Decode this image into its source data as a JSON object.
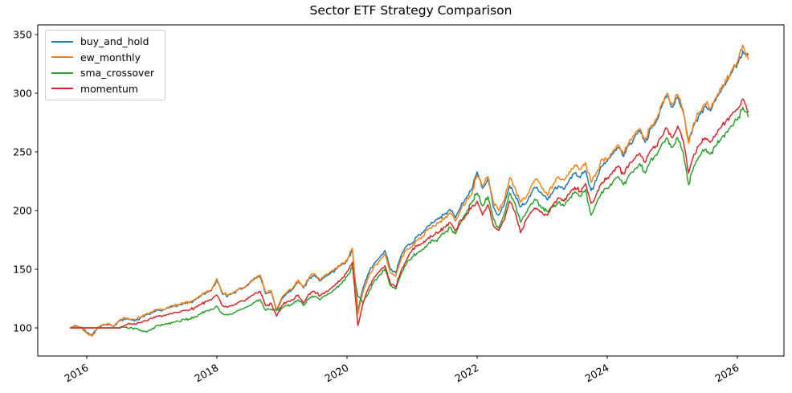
{
  "chart_data": {
    "type": "line",
    "title": "Sector ETF Strategy Comparison",
    "xlabel": "",
    "ylabel": "",
    "x_ticks": [
      2016,
      2018,
      2020,
      2022,
      2024,
      2026
    ],
    "y_ticks": [
      100,
      150,
      200,
      250,
      300,
      350
    ],
    "xlim": [
      2015.25,
      2026.7
    ],
    "ylim": [
      76,
      358
    ],
    "grid": false,
    "legend_position": "upper left",
    "x_tick_rotation_deg": 30,
    "x_start": 2015.75,
    "x_frequency": "monthly",
    "n_points": 126,
    "x_note": "x values are decimal years: 2015.75 + k/12 for k = 0..125 (Oct 2015 through Mar 2026)",
    "series": [
      {
        "name": "buy_and_hold",
        "color": "#1f77b4",
        "values": [
          100,
          102,
          100.5,
          96,
          94,
          100,
          102.5,
          103,
          101,
          106,
          108,
          107,
          106.5,
          109,
          111.5,
          113,
          115.5,
          115,
          117,
          118.5,
          119.5,
          121,
          121.5,
          124,
          127,
          130,
          132,
          141,
          129,
          127,
          129.5,
          133,
          134,
          138,
          142,
          144,
          129,
          131,
          114.5,
          125,
          130,
          133,
          140,
          134,
          142,
          145,
          140,
          144,
          147,
          150,
          154,
          157,
          167,
          115,
          135,
          147,
          155,
          160,
          166,
          150,
          147,
          162,
          170,
          172,
          178,
          181,
          187,
          190,
          193,
          197,
          201,
          194,
          204,
          211,
          218,
          233,
          219,
          228,
          203,
          196,
          205,
          221,
          213,
          203,
          206,
          215,
          220,
          214,
          209,
          216,
          221,
          218,
          226,
          232,
          228,
          234,
          217,
          226,
          238,
          242,
          248,
          254,
          246,
          256,
          262,
          268,
          258,
          270,
          276,
          288,
          298,
          288,
          297,
          284,
          259,
          273,
          282,
          289,
          285,
          294,
          302,
          310,
          318,
          325,
          336,
          333
        ]
      },
      {
        "name": "ew_monthly",
        "color": "#ff7f0e",
        "values": [
          100,
          101.5,
          100,
          95.5,
          93,
          100,
          103,
          103.5,
          101.5,
          106.5,
          108.5,
          107.5,
          107,
          109.5,
          112,
          113.5,
          116,
          115.5,
          117.5,
          119,
          120,
          121.5,
          122,
          124.5,
          127.5,
          130.5,
          132.5,
          142,
          130,
          128,
          130,
          133.5,
          134.5,
          138.5,
          142.5,
          145,
          130,
          132,
          115,
          126,
          131,
          134,
          141,
          135,
          143,
          146,
          141,
          145,
          148,
          151,
          155,
          158,
          168,
          112,
          132,
          144,
          152,
          157,
          163,
          147,
          144,
          159,
          167,
          169,
          175,
          178,
          184,
          187,
          190,
          193,
          198,
          191,
          201,
          208,
          214,
          230,
          221,
          229,
          207,
          200,
          209,
          228,
          219,
          207,
          211,
          221,
          227,
          219,
          213,
          222,
          229,
          226,
          233,
          239,
          235,
          241,
          224,
          232,
          244,
          244,
          250,
          256,
          248,
          258,
          264,
          270,
          260,
          272,
          278,
          290,
          300,
          290,
          299,
          286,
          257,
          275,
          284,
          291,
          287,
          296,
          304,
          312,
          320,
          327,
          341,
          329
        ]
      },
      {
        "name": "sma_crossover",
        "color": "#2ca02c",
        "values": [
          100,
          100,
          100,
          100,
          100,
          100,
          100,
          100,
          100,
          100,
          100.5,
          100,
          99.5,
          97.5,
          96.5,
          99,
          102,
          102.5,
          103.5,
          105,
          105.5,
          107,
          107.5,
          109.5,
          112,
          114.5,
          116,
          118.5,
          112,
          111,
          112.5,
          115,
          116.5,
          119,
          122,
          124,
          115,
          116,
          115,
          117,
          119,
          120.5,
          124,
          119,
          125,
          127,
          124,
          127.5,
          130,
          134,
          138,
          144,
          152,
          127,
          122,
          130,
          140,
          145,
          150,
          136,
          133,
          146,
          155,
          160,
          164,
          167,
          172,
          174,
          177,
          181,
          186,
          180,
          190,
          198,
          207,
          215,
          204,
          212,
          193,
          185,
          197,
          215,
          206,
          190,
          198,
          206,
          209,
          202,
          199,
          203,
          207,
          204,
          210,
          216,
          212,
          218,
          196,
          206,
          216,
          219,
          224,
          229,
          222,
          230,
          235,
          240,
          232,
          243,
          247,
          256,
          262,
          254,
          262,
          250,
          222,
          238,
          246,
          252,
          248,
          255,
          261,
          267,
          272,
          277,
          288,
          280
        ]
      },
      {
        "name": "momentum",
        "color": "#d62728",
        "values": [
          100,
          100,
          100,
          100,
          100,
          100,
          100,
          100,
          100,
          100,
          102,
          103.5,
          103,
          104.5,
          106,
          108,
          110,
          110,
          111.5,
          113,
          113.5,
          115,
          115.5,
          117.5,
          120,
          122.5,
          124,
          128,
          119,
          117.5,
          119,
          122,
          123,
          126,
          129.5,
          131,
          119,
          121,
          110,
          119,
          122.5,
          124,
          128,
          121,
          129,
          131,
          127,
          130.5,
          133.5,
          138,
          142,
          148,
          156,
          102,
          122,
          134,
          143,
          148,
          153,
          138,
          135,
          149,
          158,
          166,
          170,
          172,
          177,
          179,
          182,
          186,
          190,
          183,
          192,
          196,
          203,
          208,
          196,
          205,
          187,
          183,
          192,
          208,
          199,
          181,
          192,
          199,
          202,
          198,
          196,
          205,
          211,
          208,
          214,
          220,
          216,
          223,
          206,
          214,
          224,
          228,
          233,
          238,
          231,
          239,
          244,
          249,
          241,
          251,
          255,
          263,
          270,
          262,
          272,
          260,
          232,
          248,
          256,
          262,
          258,
          265,
          271,
          277,
          282,
          286,
          295,
          284
        ]
      }
    ],
    "render_hints": {
      "line_width": 1.5,
      "wiggle_amplitude": 0.011,
      "wiggle_subdivisions": 5,
      "axis_color": "#000000",
      "legend_border_color": "#cccccc"
    }
  }
}
